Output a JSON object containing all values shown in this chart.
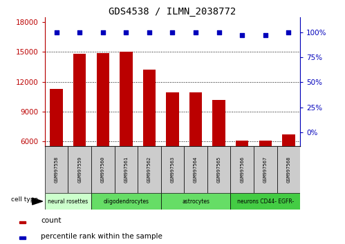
{
  "title": "GDS4538 / ILMN_2038772",
  "samples": [
    "GSM997558",
    "GSM997559",
    "GSM997560",
    "GSM997561",
    "GSM997562",
    "GSM997563",
    "GSM997564",
    "GSM997565",
    "GSM997566",
    "GSM997567",
    "GSM997568"
  ],
  "counts": [
    11300,
    14800,
    14900,
    15050,
    13200,
    10900,
    10950,
    10200,
    6100,
    6100,
    6700
  ],
  "percentile_ranks": [
    100,
    100,
    100,
    100,
    100,
    100,
    100,
    100,
    97,
    97,
    100
  ],
  "cell_types": [
    {
      "label": "neural rosettes",
      "start": 0,
      "end": 2,
      "color": "#ccffcc"
    },
    {
      "label": "oligodendrocytes",
      "start": 2,
      "end": 5,
      "color": "#66dd66"
    },
    {
      "label": "astrocytes",
      "start": 5,
      "end": 8,
      "color": "#66dd66"
    },
    {
      "label": "neurons CD44- EGFR-",
      "start": 8,
      "end": 11,
      "color": "#44cc44"
    }
  ],
  "ylim_left": [
    5500,
    18500
  ],
  "ylim_right": [
    -14,
    115
  ],
  "yticks_left": [
    6000,
    9000,
    12000,
    15000,
    18000
  ],
  "yticks_right": [
    0,
    25,
    50,
    75,
    100
  ],
  "bar_color": "#bb0000",
  "dot_color": "#0000bb",
  "bar_width": 0.55,
  "bg_color": "#ffffff",
  "tick_area_color": "#cccccc",
  "legend_count_color": "#bb0000",
  "legend_pct_color": "#0000bb"
}
